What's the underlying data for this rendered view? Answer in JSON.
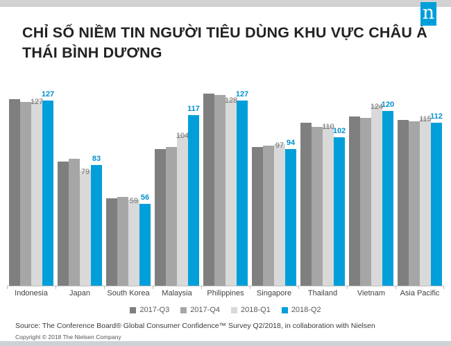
{
  "page": {
    "background_color": "#d2d2d2",
    "card_color": "#ffffff"
  },
  "logo": {
    "letter": "n",
    "background_color": "#009fda",
    "text_color": "#ffffff"
  },
  "header": {
    "title": "CHỈ SỐ NIỀM TIN NGƯỜI TIÊU DÙNG KHU VỰC CHÂU Á THÁI BÌNH DƯƠNG"
  },
  "chart_data": {
    "type": "bar",
    "title": "CHỈ SỐ NIỀM TIN NGƯỜI TIÊU DÙNG KHU VỰC CHÂU Á THÁI BÌNH DƯƠNG",
    "categories": [
      "Indonesia",
      "Japan",
      "South Korea",
      "Malaysia",
      "Philippines",
      "Singapore",
      "Thailand",
      "Vietnam",
      "Asia Pacific"
    ],
    "series": [
      {
        "name": "2017-Q3",
        "color": "#7f7f7f",
        "show_labels": false,
        "values": [
          128,
          85,
          60,
          94,
          132,
          95,
          112,
          116,
          114
        ]
      },
      {
        "name": "2017-Q4",
        "color": "#a6a6a6",
        "show_labels": false,
        "values": [
          126,
          87,
          61,
          95,
          131,
          96,
          109,
          115,
          113
        ]
      },
      {
        "name": "2018-Q1",
        "color": "#d9d9d9",
        "show_labels": true,
        "label_color": "#6e6e6e",
        "label_style": "inside",
        "values": [
          127,
          79,
          59,
          104,
          128,
          97,
          110,
          124,
          115
        ]
      },
      {
        "name": "2018-Q2",
        "color": "#009fda",
        "show_labels": true,
        "label_color": "#0090cf",
        "label_style": "above",
        "values": [
          127,
          83,
          56,
          117,
          127,
          94,
          102,
          120,
          112
        ]
      }
    ],
    "ylim": [
      0,
      140
    ],
    "grid": false,
    "legend_position": "bottom",
    "axis_line_color": "#bfbfbf",
    "note": "Only 2018-Q1 (gray) and 2018-Q2 (blue) values carry data labels in the figure; 2017-Q3 and 2017-Q4 values are estimated from bar heights."
  },
  "footer": {
    "source": "Source: The Conference Board® Global Consumer Confidence™ Survey Q2/2018, in collaboration with Nielsen",
    "copyright": "Copyright © 2018 The Nielsen Company"
  }
}
